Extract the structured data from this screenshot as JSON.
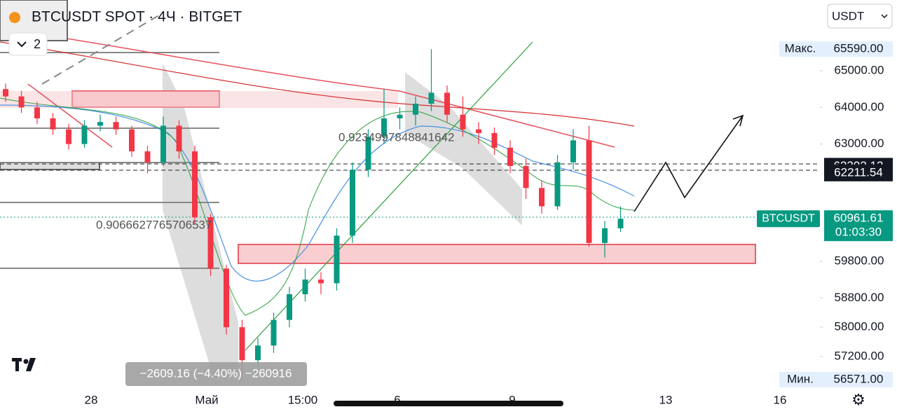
{
  "header": {
    "title": "BTCUSDT SPOT · 4Ч · BITGET",
    "layers_count": "2",
    "currency": "USDT"
  },
  "chart_data": {
    "type": "candlestick",
    "candles": [
      [
        64500,
        64650,
        64150,
        64300
      ],
      [
        64300,
        64450,
        63850,
        64000
      ],
      [
        64000,
        64150,
        63550,
        63700
      ],
      [
        63700,
        63850,
        63250,
        63400
      ],
      [
        63400,
        63550,
        62850,
        63000
      ],
      [
        63000,
        63650,
        62900,
        63500
      ],
      [
        63500,
        63800,
        63350,
        63600
      ],
      [
        63600,
        63750,
        63250,
        63400
      ],
      [
        63400,
        63500,
        62650,
        62800
      ],
      [
        62800,
        62950,
        62200,
        62500
      ],
      [
        62500,
        63750,
        62400,
        63500
      ],
      [
        63500,
        63650,
        62600,
        62800
      ],
      [
        62800,
        62950,
        60800,
        61000
      ],
      [
        61000,
        61100,
        59400,
        59600
      ],
      [
        59600,
        59700,
        57800,
        58000
      ],
      [
        58000,
        58200,
        56571,
        57100
      ],
      [
        57100,
        57700,
        56900,
        57500
      ],
      [
        57500,
        58400,
        57300,
        58200
      ],
      [
        58200,
        59100,
        58000,
        58900
      ],
      [
        58900,
        59600,
        58700,
        59300
      ],
      [
        59300,
        59500,
        58900,
        59200
      ],
      [
        59200,
        60700,
        59000,
        60500
      ],
      [
        60500,
        62500,
        60300,
        62300
      ],
      [
        62300,
        63400,
        62100,
        63200
      ],
      [
        63200,
        64500,
        63000,
        63700
      ],
      [
        63700,
        64000,
        63400,
        63800
      ],
      [
        63800,
        64300,
        63500,
        64100
      ],
      [
        64100,
        65590,
        63900,
        64400
      ],
      [
        64400,
        64600,
        63600,
        63800
      ],
      [
        63800,
        64300,
        63200,
        63400
      ],
      [
        63400,
        63600,
        63000,
        63300
      ],
      [
        63300,
        63450,
        62700,
        62900
      ],
      [
        62900,
        63100,
        62200,
        62400
      ],
      [
        62400,
        62600,
        61500,
        61800
      ],
      [
        61800,
        62000,
        61100,
        61300
      ],
      [
        61300,
        62700,
        61200,
        62500
      ],
      [
        62500,
        63400,
        62300,
        63100
      ],
      [
        63100,
        63500,
        60200,
        60300
      ],
      [
        60300,
        60900,
        59900,
        60700
      ],
      [
        60700,
        61300,
        60600,
        60961.61
      ]
    ],
    "up_color": "#089981",
    "down_color": "#f23645",
    "ylim": [
      56224,
      66931
    ],
    "yticks": [
      {
        "value": 65000,
        "label": "65000.00"
      },
      {
        "value": 64000,
        "label": "64000.00"
      },
      {
        "value": 63000,
        "label": "63000.00"
      },
      {
        "value": 59800,
        "label": "59800.00"
      },
      {
        "value": 58800,
        "label": "58800.00"
      },
      {
        "value": 58000,
        "label": "58000.00"
      },
      {
        "value": 57200,
        "label": "57200.00"
      }
    ],
    "x_labels": [
      "28",
      "Май",
      "15:00",
      "6",
      "9",
      "13",
      "16"
    ],
    "price_markers": [
      {
        "value": 62392.12,
        "label": "62392.12"
      },
      {
        "value": 62211.54,
        "label": "62211.54"
      }
    ],
    "last_price": {
      "symbol": "BTCUSDT",
      "value": 60961.61,
      "label": "60961.61",
      "countdown": "01:03:30"
    },
    "high": {
      "label": "Макс.",
      "value": 65590,
      "value_label": "65590.00"
    },
    "low": {
      "label": "Мин.",
      "value": 56571,
      "value_label": "56571.00"
    },
    "annotations": [
      "0.9234997848841642",
      "0.9066627765706537",
      "−2609.16 (−4.40%) −260916"
    ]
  }
}
